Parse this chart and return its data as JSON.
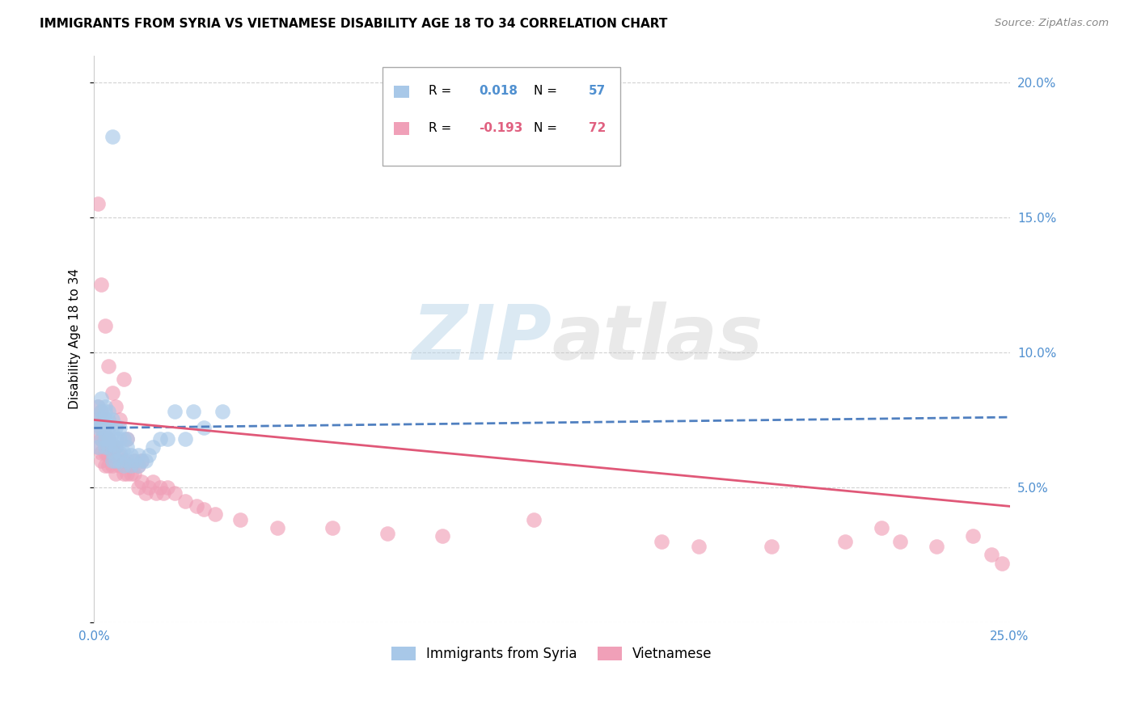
{
  "title": "IMMIGRANTS FROM SYRIA VS VIETNAMESE DISABILITY AGE 18 TO 34 CORRELATION CHART",
  "source": "Source: ZipAtlas.com",
  "ylabel": "Disability Age 18 to 34",
  "xlim": [
    0.0,
    0.25
  ],
  "ylim": [
    0.0,
    0.21
  ],
  "xticks": [
    0.0,
    0.05,
    0.1,
    0.15,
    0.2,
    0.25
  ],
  "ytick_vals": [
    0.0,
    0.05,
    0.1,
    0.15,
    0.2
  ],
  "ytick_labels_right": [
    "",
    "5.0%",
    "10.0%",
    "15.0%",
    "20.0%"
  ],
  "xticklabels": [
    "0.0%",
    "",
    "",
    "",
    "",
    "25.0%"
  ],
  "legend_label1": "Immigrants from Syria",
  "legend_label2": "Vietnamese",
  "r1": "0.018",
  "n1": "57",
  "r2": "-0.193",
  "n2": "72",
  "color_blue": "#A8C8E8",
  "color_pink": "#F0A0B8",
  "color_blue_line": "#5080C0",
  "color_pink_line": "#E05878",
  "color_blue_text": "#5090D0",
  "color_pink_text": "#E06080",
  "watermark_color": "#D8E8F0",
  "grid_color": "#CCCCCC",
  "syria_x": [
    0.001,
    0.001,
    0.001,
    0.001,
    0.002,
    0.002,
    0.002,
    0.002,
    0.002,
    0.003,
    0.003,
    0.003,
    0.003,
    0.003,
    0.003,
    0.003,
    0.004,
    0.004,
    0.004,
    0.004,
    0.004,
    0.005,
    0.005,
    0.005,
    0.005,
    0.005,
    0.005,
    0.006,
    0.006,
    0.006,
    0.006,
    0.007,
    0.007,
    0.007,
    0.007,
    0.008,
    0.008,
    0.008,
    0.009,
    0.009,
    0.009,
    0.01,
    0.01,
    0.011,
    0.012,
    0.012,
    0.013,
    0.014,
    0.015,
    0.016,
    0.018,
    0.02,
    0.022,
    0.025,
    0.027,
    0.03,
    0.035
  ],
  "syria_y": [
    0.065,
    0.072,
    0.075,
    0.08,
    0.068,
    0.072,
    0.075,
    0.078,
    0.083,
    0.065,
    0.068,
    0.07,
    0.073,
    0.075,
    0.078,
    0.08,
    0.065,
    0.068,
    0.072,
    0.075,
    0.078,
    0.06,
    0.063,
    0.066,
    0.07,
    0.075,
    0.18,
    0.06,
    0.065,
    0.068,
    0.072,
    0.06,
    0.063,
    0.068,
    0.072,
    0.058,
    0.063,
    0.068,
    0.06,
    0.065,
    0.068,
    0.058,
    0.062,
    0.06,
    0.058,
    0.062,
    0.06,
    0.06,
    0.062,
    0.065,
    0.068,
    0.068,
    0.078,
    0.068,
    0.078,
    0.072,
    0.078
  ],
  "viet_x": [
    0.001,
    0.001,
    0.001,
    0.001,
    0.001,
    0.002,
    0.002,
    0.002,
    0.002,
    0.002,
    0.002,
    0.003,
    0.003,
    0.003,
    0.003,
    0.003,
    0.004,
    0.004,
    0.004,
    0.004,
    0.005,
    0.005,
    0.005,
    0.005,
    0.006,
    0.006,
    0.006,
    0.006,
    0.007,
    0.007,
    0.007,
    0.008,
    0.008,
    0.008,
    0.009,
    0.009,
    0.01,
    0.01,
    0.011,
    0.011,
    0.012,
    0.012,
    0.013,
    0.013,
    0.014,
    0.015,
    0.016,
    0.017,
    0.018,
    0.019,
    0.02,
    0.022,
    0.025,
    0.028,
    0.03,
    0.033,
    0.04,
    0.05,
    0.065,
    0.08,
    0.095,
    0.12,
    0.155,
    0.165,
    0.185,
    0.205,
    0.215,
    0.22,
    0.23,
    0.24,
    0.245,
    0.248
  ],
  "viet_y": [
    0.065,
    0.07,
    0.075,
    0.08,
    0.155,
    0.06,
    0.063,
    0.068,
    0.072,
    0.078,
    0.125,
    0.058,
    0.063,
    0.068,
    0.073,
    0.11,
    0.058,
    0.062,
    0.068,
    0.095,
    0.058,
    0.062,
    0.065,
    0.085,
    0.055,
    0.06,
    0.065,
    0.08,
    0.058,
    0.062,
    0.075,
    0.055,
    0.06,
    0.09,
    0.055,
    0.068,
    0.055,
    0.058,
    0.055,
    0.06,
    0.05,
    0.058,
    0.052,
    0.06,
    0.048,
    0.05,
    0.052,
    0.048,
    0.05,
    0.048,
    0.05,
    0.048,
    0.045,
    0.043,
    0.042,
    0.04,
    0.038,
    0.035,
    0.035,
    0.033,
    0.032,
    0.038,
    0.03,
    0.028,
    0.028,
    0.03,
    0.035,
    0.03,
    0.028,
    0.032,
    0.025,
    0.022
  ],
  "syria_line_x": [
    0.0,
    0.25
  ],
  "syria_line_y": [
    0.072,
    0.076
  ],
  "viet_line_x": [
    0.0,
    0.25
  ],
  "viet_line_y": [
    0.075,
    0.043
  ]
}
